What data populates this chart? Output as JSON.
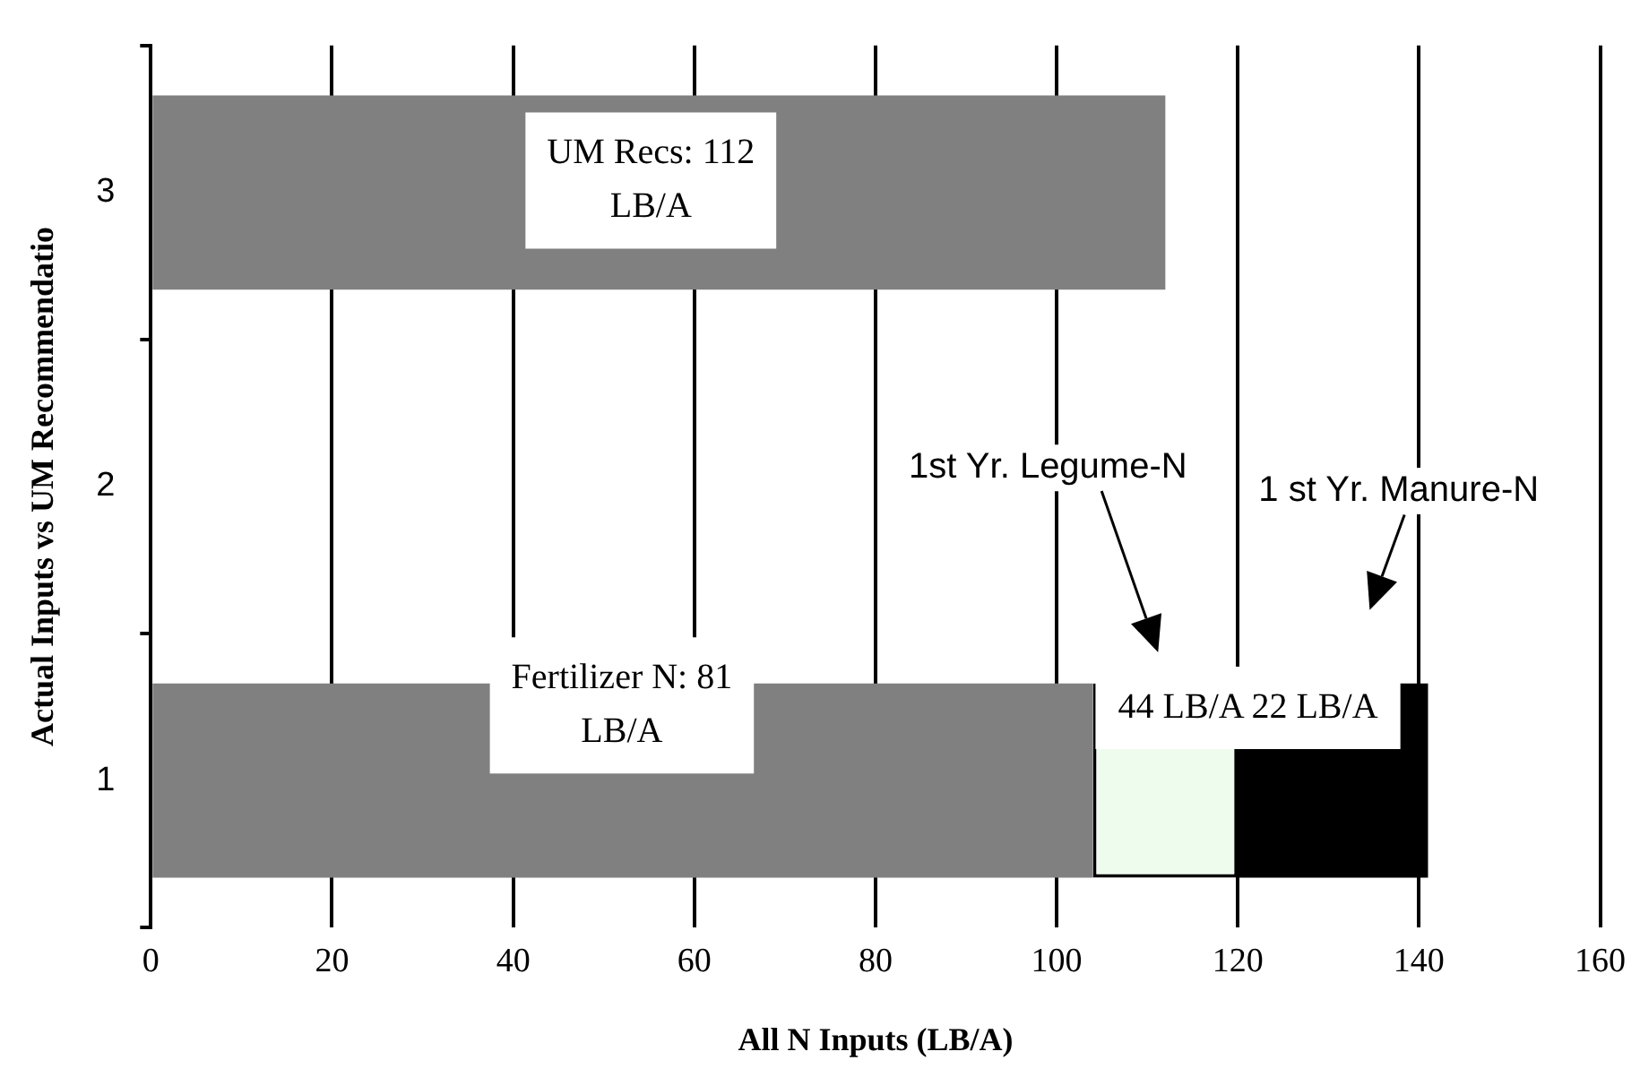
{
  "chart_data": {
    "type": "bar",
    "orientation": "horizontal",
    "stacked": true,
    "categories": [
      "3",
      "2",
      "1"
    ],
    "series": [
      {
        "color": "#808080",
        "values": [
          112,
          null,
          104
        ]
      },
      {
        "color": "#eefcee",
        "values": [
          null,
          null,
          16
        ]
      },
      {
        "color": "#000000",
        "values": [
          null,
          null,
          21
        ]
      }
    ],
    "xlim": [
      0,
      160
    ],
    "xticks": [
      0,
      20,
      40,
      60,
      80,
      100,
      120,
      140,
      160
    ],
    "xlabel": "All N Inputs (LB/A)",
    "ylabel": "Actual Inputs vs UM Recommendatio",
    "grid": "x",
    "legend": false,
    "annotations": [
      "UM Recs: 112 LB/A",
      "Fertilizer N: 81 LB/A",
      "44 LB/A 22 LB/A",
      "1st Yr. Legume-N",
      "1 st Yr. Manure-N"
    ]
  }
}
